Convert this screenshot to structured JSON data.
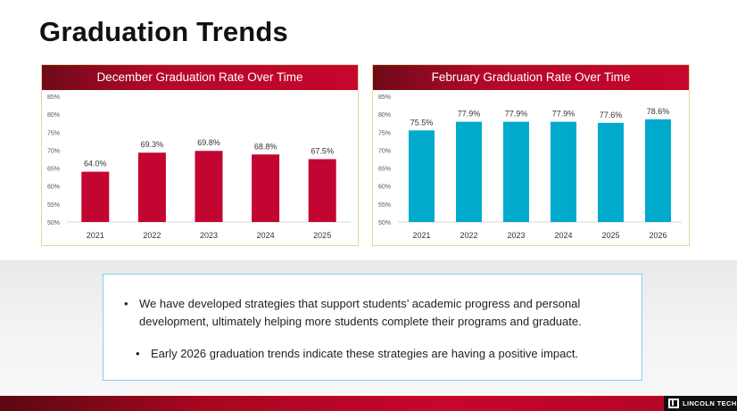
{
  "page": {
    "title": "Graduation Trends"
  },
  "chart_data": [
    {
      "type": "bar",
      "title": "December Graduation Rate Over Time",
      "categories": [
        "2021",
        "2022",
        "2023",
        "2024",
        "2025"
      ],
      "values": [
        64.0,
        69.3,
        69.8,
        68.8,
        67.5
      ],
      "value_labels": [
        "64.0%",
        "69.3%",
        "69.8%",
        "68.8%",
        "67.5%"
      ],
      "yticks": [
        "50%",
        "55%",
        "60%",
        "65%",
        "70%",
        "75%",
        "80%",
        "85%"
      ],
      "ylim": [
        50,
        85
      ],
      "xlabel": "",
      "ylabel": "",
      "bar_color": "#c20631"
    },
    {
      "type": "bar",
      "title": "February Graduation Rate Over Time",
      "categories": [
        "2021",
        "2022",
        "2023",
        "2024",
        "2025",
        "2026"
      ],
      "values": [
        75.5,
        77.9,
        77.9,
        77.9,
        77.6,
        78.6
      ],
      "value_labels": [
        "75.5%",
        "77.9%",
        "77.9%",
        "77.9%",
        "77.6%",
        "78.6%"
      ],
      "yticks": [
        "50%",
        "55%",
        "60%",
        "65%",
        "70%",
        "75%",
        "80%",
        "85%"
      ],
      "ylim": [
        50,
        85
      ],
      "xlabel": "",
      "ylabel": "",
      "bar_color": "#00aacc"
    }
  ],
  "notes": {
    "bullet_symbol": "•",
    "bullets": [
      "We have developed strategies that support students’ academic progress and personal development, ultimately helping more students complete their programs and graduate.",
      "Early 2026 graduation trends indicate these strategies are having a positive impact."
    ]
  },
  "footer": {
    "logo_text": "LINCOLN TECH"
  }
}
